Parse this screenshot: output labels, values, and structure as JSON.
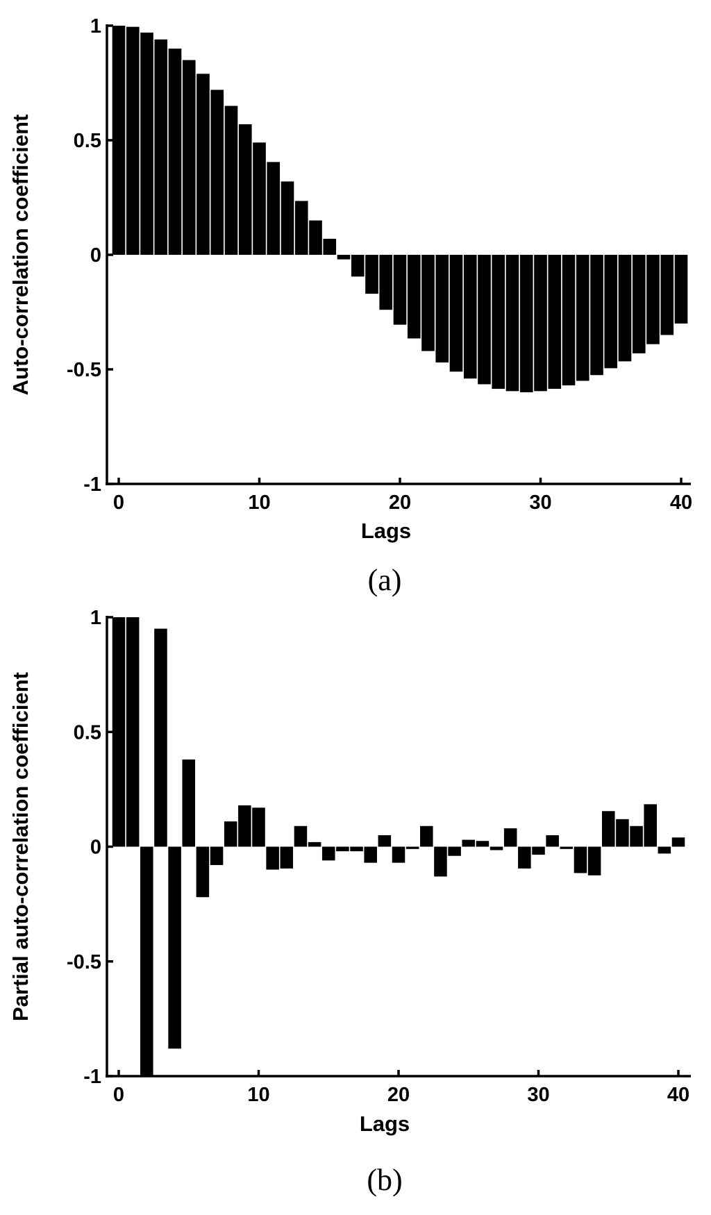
{
  "chart_data": [
    {
      "type": "bar",
      "caption": "(a)",
      "xlabel": "Lags",
      "ylabel": "Auto-correlation coefficient",
      "xlim": [
        -1,
        41
      ],
      "ylim": [
        -1,
        1
      ],
      "xticks": [
        0,
        10,
        20,
        30,
        40
      ],
      "yticks": [
        1,
        0.5,
        0,
        -0.5,
        -1
      ],
      "xtick_labels": [
        "0",
        "10",
        "20",
        "30",
        "40"
      ],
      "ytick_labels": [
        "1",
        "0.5",
        "0",
        "-0.5",
        "-1"
      ],
      "x": [
        0,
        1,
        2,
        3,
        4,
        5,
        6,
        7,
        8,
        9,
        10,
        11,
        12,
        13,
        14,
        15,
        16,
        17,
        18,
        19,
        20,
        21,
        22,
        23,
        24,
        25,
        26,
        27,
        28,
        29,
        30,
        31,
        32,
        33,
        34,
        35,
        36,
        37,
        38,
        39,
        40
      ],
      "values": [
        1.0,
        0.995,
        0.97,
        0.94,
        0.9,
        0.85,
        0.79,
        0.72,
        0.65,
        0.57,
        0.49,
        0.405,
        0.32,
        0.235,
        0.15,
        0.07,
        -0.02,
        -0.095,
        -0.17,
        -0.24,
        -0.305,
        -0.365,
        -0.42,
        -0.47,
        -0.51,
        -0.54,
        -0.565,
        -0.585,
        -0.595,
        -0.6,
        -0.595,
        -0.585,
        -0.57,
        -0.55,
        -0.525,
        -0.495,
        -0.465,
        -0.43,
        -0.39,
        -0.35,
        -0.3
      ],
      "grid": false
    },
    {
      "type": "bar",
      "caption": "(b)",
      "xlabel": "Lags",
      "ylabel": "Partial auto-correlation coefficient",
      "xlim": [
        -1,
        41
      ],
      "ylim": [
        -1,
        1
      ],
      "xticks": [
        0,
        10,
        20,
        30,
        40
      ],
      "yticks": [
        1,
        0.5,
        0,
        -0.5,
        -1
      ],
      "xtick_labels": [
        "0",
        "10",
        "20",
        "30",
        "40"
      ],
      "ytick_labels": [
        "1",
        "0.5",
        "0",
        "-0.5",
        "-1"
      ],
      "x": [
        0,
        1,
        2,
        3,
        4,
        5,
        6,
        7,
        8,
        9,
        10,
        11,
        12,
        13,
        14,
        15,
        16,
        17,
        18,
        19,
        20,
        21,
        22,
        23,
        24,
        25,
        26,
        27,
        28,
        29,
        30,
        31,
        32,
        33,
        34,
        35,
        36,
        37,
        38,
        39,
        40
      ],
      "values": [
        1.0,
        1.0,
        -1.0,
        0.95,
        -0.88,
        0.38,
        -0.22,
        -0.08,
        0.11,
        0.18,
        0.17,
        -0.1,
        -0.095,
        0.09,
        0.02,
        -0.06,
        -0.02,
        -0.02,
        -0.07,
        0.05,
        -0.07,
        -0.01,
        0.09,
        -0.13,
        -0.04,
        0.03,
        0.025,
        -0.015,
        0.08,
        -0.095,
        -0.035,
        0.05,
        -0.01,
        -0.115,
        -0.125,
        0.155,
        0.12,
        0.09,
        0.185,
        -0.03,
        0.04
      ],
      "grid": false
    }
  ]
}
